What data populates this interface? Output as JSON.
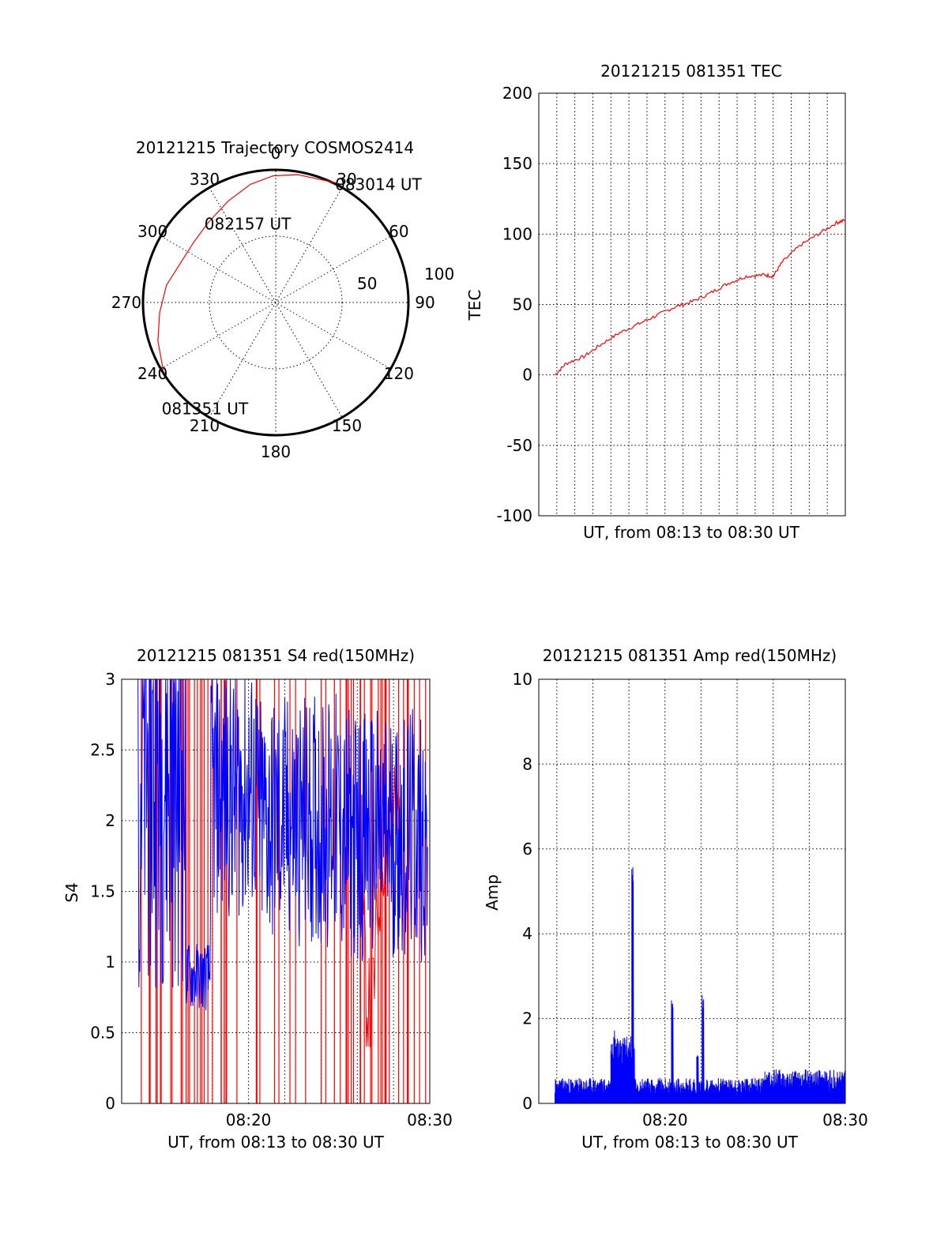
{
  "chart_data": [
    {
      "type": "polar",
      "title": "20121215 Trajectory COSMOS2414",
      "azimuth_labels": [
        "0",
        "30",
        "60",
        "90",
        "120",
        "150",
        "180",
        "210",
        "240",
        "270",
        "300",
        "330"
      ],
      "elevation_labels": [
        "50",
        "100"
      ],
      "colors": {
        "trajectory": "#ff0000"
      },
      "series": [
        {
          "points": [
            {
              "az": 239,
              "zenith": 89
            },
            {
              "az": 252,
              "zenith": 84
            },
            {
              "az": 265,
              "zenith": 79
            },
            {
              "az": 279,
              "zenith": 75
            },
            {
              "az": 292,
              "zenith": 70
            },
            {
              "az": 306,
              "zenith": 69
            },
            {
              "az": 320,
              "zenith": 71
            },
            {
              "az": 335,
              "zenith": 76
            },
            {
              "az": 348,
              "zenith": 82
            },
            {
              "az": 359,
              "zenith": 86
            },
            {
              "az": 10,
              "zenith": 88
            },
            {
              "az": 21,
              "zenith": 89
            },
            {
              "az": 27,
              "zenith": 91
            }
          ]
        }
      ],
      "annotations": [
        {
          "text": "083014 UT",
          "az": 27,
          "zenith": 91
        },
        {
          "text": "082157 UT",
          "az": 320,
          "zenith": 71
        },
        {
          "text": "081351 UT",
          "az": 239,
          "zenith": 89
        }
      ]
    },
    {
      "type": "line",
      "title": "20121215 081351 TEC",
      "xlabel": "UT, from 08:13 to 08:30 UT",
      "ylabel": "TEC",
      "ylim": [
        -100,
        200
      ],
      "yticks": [
        "-100",
        "-50",
        "0",
        "50",
        "100",
        "150",
        "200"
      ],
      "xlim_minutes": [
        0,
        17
      ],
      "grid": true,
      "colors": {
        "line": "#ff0000"
      },
      "x_minutes": [
        0.9,
        1.5,
        2.5,
        3.5,
        4.5,
        5.5,
        6.5,
        7.5,
        8.5,
        9.5,
        10.5,
        11.5,
        12.5,
        13.0,
        13.5,
        14.5,
        15.5,
        16.5,
        17.0
      ],
      "values": [
        0,
        8,
        13,
        22,
        30,
        36,
        42,
        48,
        52,
        58,
        65,
        70,
        71,
        70,
        80,
        92,
        100,
        108,
        110
      ]
    },
    {
      "type": "line",
      "title": "20121215 081351 S4 red(150MHz)",
      "xlabel": "UT, from 08:13 to 08:30 UT",
      "ylabel": "S4",
      "ylim": [
        0,
        3
      ],
      "yticks": [
        "0",
        "0.5",
        "1",
        "1.5",
        "2",
        "2.5",
        "3"
      ],
      "xticks": [
        {
          "label": "08:20",
          "minute": 7
        },
        {
          "label": "08:30",
          "minute": 17
        }
      ],
      "xlim_minutes": [
        0,
        17
      ],
      "grid": true,
      "colors": {
        "red": "#ff0000",
        "blue": "#0000ff"
      }
    },
    {
      "type": "bar",
      "title": "20121215 081351 Amp red(150MHz)",
      "xlabel": "UT, from 08:13 to 08:30 UT",
      "ylabel": "Amp",
      "ylim": [
        0,
        10
      ],
      "yticks": [
        "0",
        "2",
        "4",
        "6",
        "8",
        "10"
      ],
      "xticks": [
        {
          "label": "08:20",
          "minute": 7
        },
        {
          "label": "08:30",
          "minute": 17
        }
      ],
      "xlim_minutes": [
        0,
        17
      ],
      "grid": true,
      "colors": {
        "bars": "#0000ff"
      },
      "peaks": [
        {
          "minute": 5.2,
          "value": 5.75
        },
        {
          "minute": 7.4,
          "value": 2.45
        },
        {
          "minute": 9.1,
          "value": 2.6
        },
        {
          "minute": 8.8,
          "value": 1.15
        },
        {
          "minute": 4.2,
          "value": 1.75
        }
      ]
    }
  ]
}
